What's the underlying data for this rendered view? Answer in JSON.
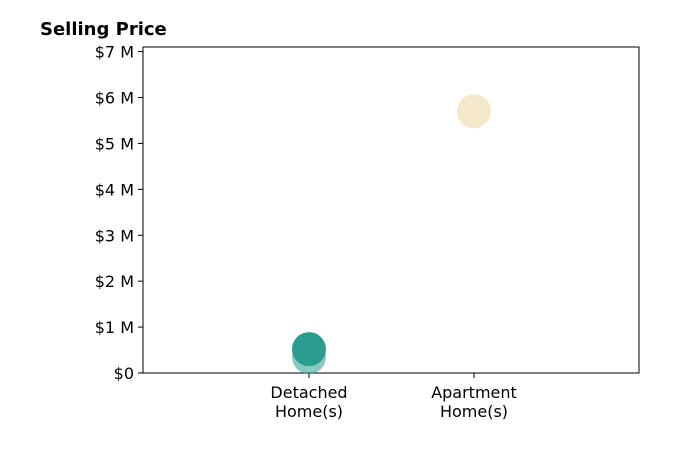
{
  "chart_data": {
    "type": "scatter",
    "title": "Selling Price",
    "xlabel": "",
    "ylabel": "",
    "categories": [
      "Detached\nHome(s)",
      "Apartment\nHome(s)"
    ],
    "y_tick_labels": [
      "$0",
      "$1 M",
      "$2 M",
      "$3 M",
      "$4 M",
      "$5 M",
      "$6 M",
      "$7 M"
    ],
    "y_ticks": [
      0,
      1000000,
      2000000,
      3000000,
      4000000,
      5000000,
      6000000,
      7000000
    ],
    "ylim": [
      0,
      7100000
    ],
    "grid": false,
    "series": [
      {
        "color": "#2a9d8f",
        "points": [
          {
            "category": "Detached\nHome(s)",
            "value": 350000,
            "opacity": 0.55
          },
          {
            "category": "Detached\nHome(s)",
            "value": 520000,
            "opacity": 1.0
          }
        ]
      },
      {
        "color": "#f5e6c4",
        "points": [
          {
            "category": "Apartment\nHome(s)",
            "value": 5700000,
            "opacity": 0.9
          }
        ]
      }
    ]
  }
}
